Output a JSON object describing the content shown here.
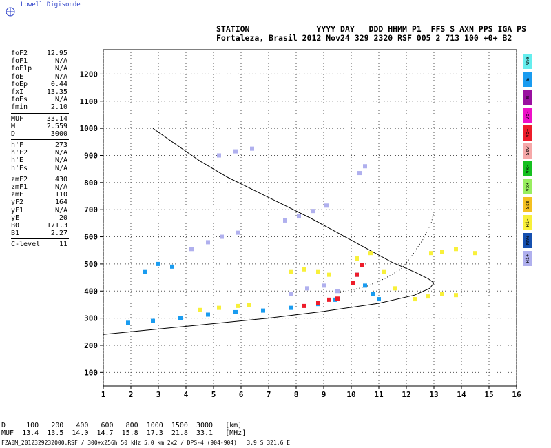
{
  "brand": {
    "name": "Lowell Digisonde",
    "logo_icon": "digisonde-logo-icon"
  },
  "header": {
    "line1": "STATION              YYYY DAY   DDD HHMM P1  FFS S AXN PPS IGA PS",
    "line2": "Fortaleza, Brasil 2012 Nov24 329 2320 RSF 005 2 713 100 +0+ B2"
  },
  "params": [
    [
      {
        "label": "foF2",
        "value": "12.95"
      },
      {
        "label": "foF1",
        "value": "N/A"
      },
      {
        "label": "foF1p",
        "value": "N/A"
      },
      {
        "label": "foE",
        "value": "N/A"
      },
      {
        "label": "foEp",
        "value": "0.44"
      },
      {
        "label": "fxI",
        "value": "13.35"
      },
      {
        "label": "foEs",
        "value": "N/A"
      },
      {
        "label": "fmin",
        "value": "2.10"
      }
    ],
    [
      {
        "label": "MUF",
        "value": "33.14"
      },
      {
        "label": "M",
        "value": "2.559"
      },
      {
        "label": "D",
        "value": "3000"
      }
    ],
    [
      {
        "label": "h'F",
        "value": "273"
      },
      {
        "label": "h'F2",
        "value": "N/A"
      },
      {
        "label": "h'E",
        "value": "N/A"
      },
      {
        "label": "h'Es",
        "value": "N/A"
      }
    ],
    [
      {
        "label": "zmF2",
        "value": "430"
      },
      {
        "label": "zmF1",
        "value": "N/A"
      },
      {
        "label": "zmE",
        "value": "110"
      },
      {
        "label": "yF2",
        "value": "164"
      },
      {
        "label": "yF1",
        "value": "N/A"
      },
      {
        "label": "yE",
        "value": "20"
      },
      {
        "label": "B0",
        "value": "171.3"
      },
      {
        "label": "B1",
        "value": "2.27"
      }
    ],
    [
      {
        "label": "C-level",
        "value": "11"
      }
    ]
  ],
  "legend": [
    {
      "label": "Nne",
      "color": "#66eeee"
    },
    {
      "label": "E",
      "color": "#1a9cf0"
    },
    {
      "label": "W",
      "color": "#9a10a0"
    },
    {
      "label": "Vo-",
      "color": "#ee10c8"
    },
    {
      "label": "Vo+",
      "color": "#ee1c2a"
    },
    {
      "label": "Ssw",
      "color": "#f6a8a8"
    },
    {
      "label": "Vx-",
      "color": "#16c020"
    },
    {
      "label": "Vx+",
      "color": "#98ee60"
    },
    {
      "label": "Sse",
      "color": "#f4c020"
    },
    {
      "label": "Hi-",
      "color": "#f8f03a"
    },
    {
      "label": "Nnw",
      "color": "#1650b0"
    },
    {
      "label": "Hi+",
      "color": "#b0b0ee"
    }
  ],
  "muf_table": {
    "line1": "D     100   200   400   600   800  1000  1500  3000   [km]",
    "line2": "MUF  13.4  13.5  14.0  14.7  15.8  17.3  21.8  33.1   [MHz]"
  },
  "footer": "FZA0M_2012329232000.RSF / 300+x256h 50 kHz 5.0 km 2x2 / DPS-4 (904-904)   3.9 S 321.6 E",
  "chart_data": {
    "type": "scatter",
    "x_ticks": [
      "1",
      "2",
      "3",
      "4",
      "5",
      "6",
      "7",
      "8",
      "9",
      "10",
      "11",
      "12",
      "13",
      "14",
      "15",
      "16"
    ],
    "y_ticks": [
      "100",
      "200",
      "300",
      "400",
      "500",
      "600",
      "700",
      "800",
      "900",
      "1000",
      "1100",
      "1200"
    ],
    "xlim": [
      1,
      16
    ],
    "ylim": [
      50,
      1290
    ],
    "grid": true,
    "series": [
      {
        "kind": "profile",
        "color": "#000000",
        "points": [
          [
            2.8,
            1000
          ],
          [
            3.5,
            950
          ],
          [
            4.5,
            880
          ],
          [
            5.5,
            820
          ],
          [
            6.5,
            770
          ],
          [
            7.5,
            720
          ],
          [
            8.5,
            670
          ],
          [
            9.5,
            615
          ],
          [
            10.5,
            560
          ],
          [
            11.5,
            505
          ],
          [
            12.3,
            470
          ],
          [
            12.8,
            445
          ],
          [
            13.0,
            430
          ],
          [
            12.85,
            410
          ],
          [
            12.3,
            385
          ],
          [
            11.0,
            355
          ],
          [
            9.0,
            325
          ],
          [
            7.0,
            300
          ],
          [
            5.0,
            280
          ],
          [
            3.0,
            260
          ],
          [
            1.0,
            240
          ]
        ]
      },
      {
        "kind": "trace",
        "color": "#000000",
        "dotted": true,
        "points": [
          [
            9.6,
            395
          ],
          [
            10.5,
            415
          ],
          [
            11.2,
            445
          ],
          [
            11.8,
            480
          ],
          [
            12.2,
            530
          ],
          [
            12.6,
            590
          ],
          [
            12.9,
            650
          ],
          [
            13.0,
            690
          ]
        ]
      },
      {
        "kind": "band",
        "color": "#1a9cf0",
        "points": [
          [
            1.9,
            283
          ],
          [
            2.8,
            290
          ],
          [
            3.8,
            300
          ],
          [
            4.8,
            313
          ],
          [
            5.8,
            322
          ],
          [
            6.8,
            328
          ],
          [
            7.8,
            338
          ],
          [
            8.8,
            352
          ],
          [
            9.4,
            368
          ]
        ]
      },
      {
        "kind": "band",
        "color": "#ee1c2a",
        "points": [
          [
            8.3,
            345
          ],
          [
            8.8,
            356
          ],
          [
            9.2,
            368
          ],
          [
            9.5,
            372
          ]
        ]
      },
      {
        "kind": "band",
        "color": "#1a9cf0",
        "points": [
          [
            2.5,
            470
          ],
          [
            3.0,
            500
          ],
          [
            3.5,
            490
          ]
        ]
      },
      {
        "kind": "band",
        "color": "#b0b0ee",
        "points": [
          [
            4.2,
            555
          ],
          [
            4.8,
            580
          ],
          [
            5.3,
            600
          ],
          [
            5.9,
            615
          ]
        ]
      },
      {
        "kind": "band",
        "color": "#b0b0ee",
        "points": [
          [
            7.6,
            660
          ],
          [
            8.1,
            675
          ],
          [
            8.6,
            695
          ],
          [
            9.1,
            715
          ]
        ]
      },
      {
        "kind": "band",
        "color": "#f8f03a",
        "points": [
          [
            4.5,
            330
          ],
          [
            5.2,
            338
          ],
          [
            5.9,
            345
          ],
          [
            6.3,
            348
          ]
        ]
      },
      {
        "kind": "band",
        "color": "#f8f03a",
        "points": [
          [
            10.2,
            520
          ],
          [
            10.7,
            540
          ],
          [
            11.2,
            470
          ],
          [
            11.6,
            410
          ]
        ]
      },
      {
        "kind": "band",
        "color": "#f8f03a",
        "points": [
          [
            12.3,
            370
          ],
          [
            12.8,
            380
          ],
          [
            13.3,
            390
          ],
          [
            13.8,
            385
          ]
        ]
      },
      {
        "kind": "band",
        "color": "#f8f03a",
        "points": [
          [
            12.9,
            540
          ],
          [
            13.3,
            545
          ],
          [
            13.8,
            555
          ],
          [
            14.5,
            540
          ]
        ]
      },
      {
        "kind": "band",
        "color": "#b0b0ee",
        "points": [
          [
            7.8,
            390
          ],
          [
            8.4,
            410
          ],
          [
            9.0,
            420
          ],
          [
            9.5,
            400
          ]
        ]
      },
      {
        "kind": "band",
        "color": "#f8f03a",
        "points": [
          [
            7.8,
            470
          ],
          [
            8.3,
            480
          ],
          [
            8.8,
            470
          ],
          [
            9.2,
            460
          ]
        ]
      },
      {
        "kind": "band",
        "color": "#1a9cf0",
        "points": [
          [
            10.2,
            460
          ],
          [
            10.5,
            420
          ],
          [
            10.8,
            390
          ],
          [
            11.0,
            370
          ]
        ]
      },
      {
        "kind": "band",
        "color": "#ee1c2a",
        "points": [
          [
            10.05,
            430
          ],
          [
            10.2,
            460
          ],
          [
            10.4,
            495
          ]
        ]
      },
      {
        "kind": "band",
        "color": "#b0b0ee",
        "points": [
          [
            10.3,
            835
          ],
          [
            10.5,
            860
          ]
        ]
      },
      {
        "kind": "band",
        "color": "#b0b0ee",
        "points": [
          [
            5.2,
            900
          ],
          [
            5.8,
            915
          ],
          [
            6.4,
            925
          ]
        ]
      }
    ]
  }
}
